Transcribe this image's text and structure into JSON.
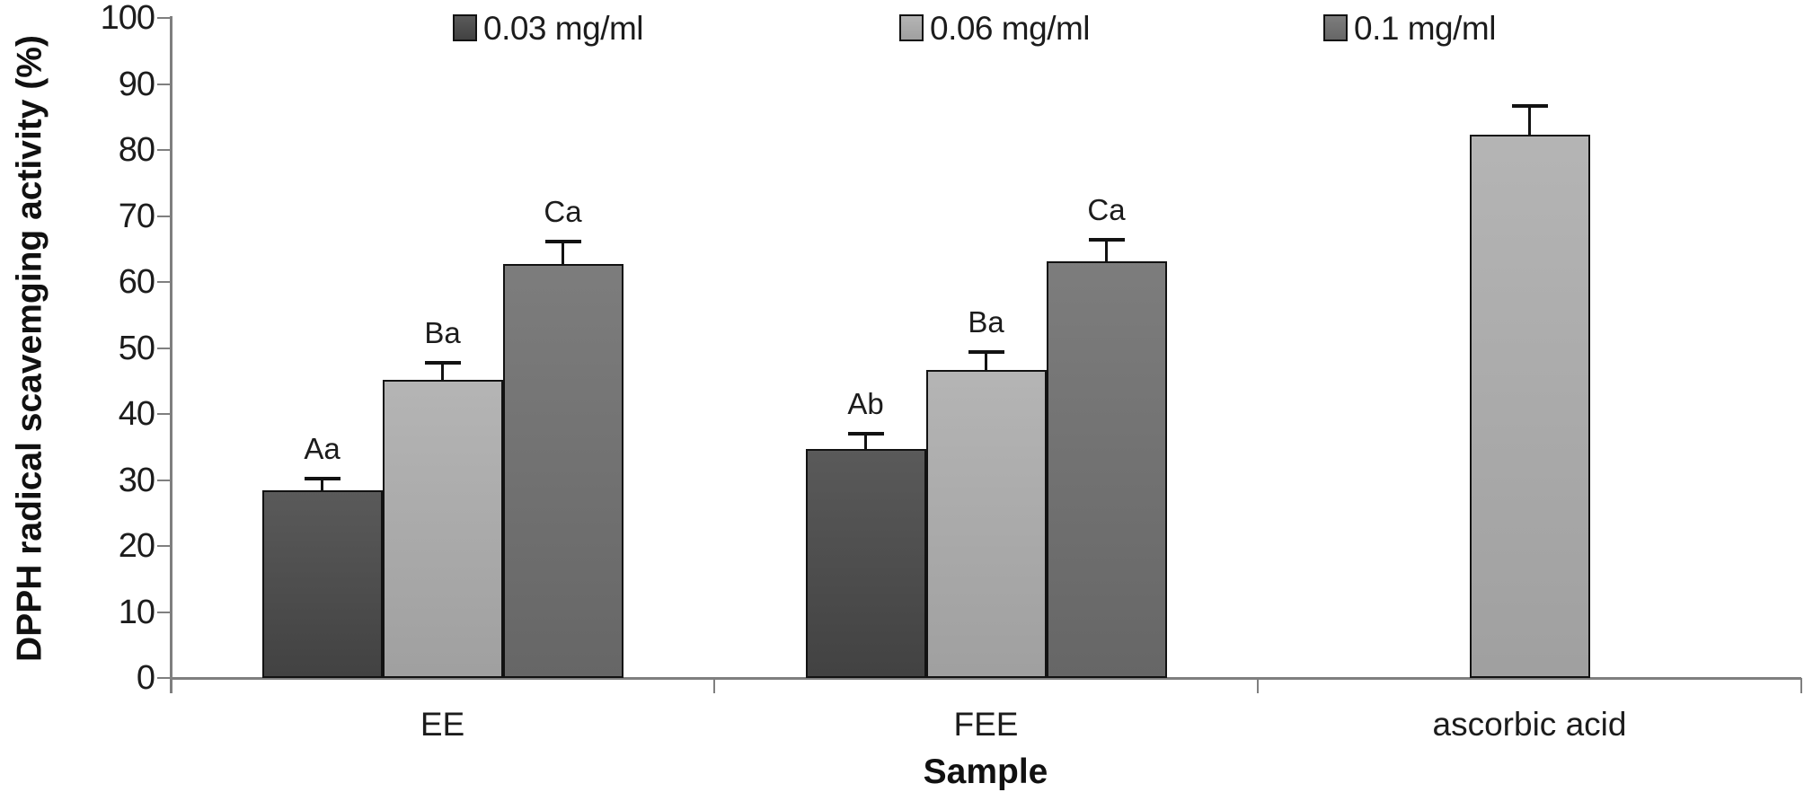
{
  "chart_data": {
    "type": "bar",
    "title": "",
    "ylabel": "DPPH radical scavemging activity (%)",
    "xlabel": "Sample",
    "ylim": [
      0,
      100
    ],
    "yticks": [
      0,
      10,
      20,
      30,
      40,
      50,
      60,
      70,
      80,
      90,
      100
    ],
    "grid": "off",
    "legend_position": "top",
    "categories": [
      "EE",
      "FEE",
      "ascorbic acid"
    ],
    "series": [
      {
        "name": "0.03 mg/ml",
        "color": "#474747",
        "values": [
          28.4,
          34.7,
          null
        ],
        "errors": [
          1.8,
          2.3,
          null
        ],
        "annotations": [
          "Aa",
          "Ab",
          null
        ]
      },
      {
        "name": "0.06 mg/ml",
        "color": "#acacac",
        "values": [
          45.2,
          46.7,
          82.3
        ],
        "errors": [
          2.6,
          2.7,
          4.4
        ],
        "annotations": [
          "Ba",
          "Ba",
          null
        ]
      },
      {
        "name": "0.1 mg/ml",
        "color": "#6e6e6e",
        "values": [
          62.7,
          63.1,
          null
        ],
        "errors": [
          3.4,
          3.3,
          null
        ],
        "annotations": [
          "Ca",
          "Ca",
          null
        ]
      }
    ]
  }
}
